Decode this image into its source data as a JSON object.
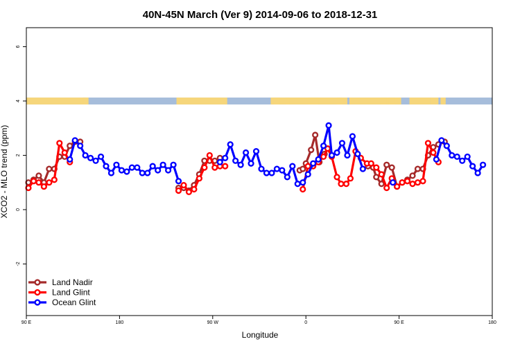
{
  "chart_data": {
    "type": "line",
    "title": "40N-45N March (Ver 9)   2014-09-06 to 2018-12-31",
    "xlabel": "Longitude",
    "ylabel": "XCO2 - MLO trend (ppm)",
    "xlim": [
      90,
      540
    ],
    "ylim": [
      -3.9,
      6.7
    ],
    "x_ticks": [
      {
        "value": 90,
        "label": "90 E"
      },
      {
        "value": 180,
        "label": "180"
      },
      {
        "value": 270,
        "label": "90 W"
      },
      {
        "value": 360,
        "label": "0"
      },
      {
        "value": 450,
        "label": "90 E"
      },
      {
        "value": 540,
        "label": "180"
      }
    ],
    "y_ticks": [
      {
        "value": -2,
        "label": "-2"
      },
      {
        "value": 0,
        "label": "0"
      },
      {
        "value": 2,
        "label": "2"
      },
      {
        "value": 4,
        "label": "4"
      },
      {
        "value": 6,
        "label": "6"
      }
    ],
    "legend_position": "bottom-left",
    "surface_strip": {
      "y_center": 4.0,
      "land_color": "#f6d67b",
      "ocean_color": "#a6bddb",
      "land_ranges": [
        [
          90,
          147
        ],
        [
          144,
          148
        ],
        [
          146,
          150
        ],
        [
          145,
          150
        ],
        [
          235,
          284
        ],
        [
          326,
          386
        ],
        [
          329,
          335
        ],
        [
          340,
          344
        ],
        [
          362,
          372
        ],
        [
          386,
          400
        ],
        [
          390,
          395
        ],
        [
          402,
          452
        ],
        [
          432,
          438
        ],
        [
          440,
          446
        ],
        [
          460,
          480
        ],
        [
          480,
          488
        ],
        [
          490,
          495
        ]
      ]
    },
    "series": [
      {
        "name": "Land Nadir",
        "color": "#a52a2a",
        "segments": [
          [
            [
              92,
              1.0
            ],
            [
              97,
              1.1
            ],
            [
              102,
              1.25
            ],
            [
              107,
              1.0
            ],
            [
              112,
              1.5
            ],
            [
              117,
              1.5
            ],
            [
              122,
              1.95
            ],
            [
              127,
              1.95
            ],
            [
              132,
              2.35
            ],
            [
              137,
              2.5
            ],
            [
              142,
              2.5
            ]
          ],
          [
            [
              237,
              0.8
            ],
            [
              242,
              0.8
            ],
            [
              247,
              0.7
            ],
            [
              252,
              0.9
            ],
            [
              257,
              1.3
            ],
            [
              262,
              1.8
            ],
            [
              267,
              1.8
            ],
            [
              272,
              1.8
            ],
            [
              277,
              1.9
            ]
          ],
          [
            [
              354,
              1.45
            ],
            [
              357,
              1.5
            ],
            [
              360,
              1.7
            ],
            [
              365,
              2.2
            ],
            [
              369,
              2.75
            ],
            [
              373,
              1.75
            ],
            [
              378,
              2.05
            ]
          ],
          [
            [
              420,
              1.6
            ],
            [
              425,
              1.55
            ],
            [
              428,
              1.2
            ],
            [
              433,
              0.95
            ],
            [
              438,
              1.65
            ],
            [
              443,
              1.55
            ],
            [
              448,
              0.85
            ],
            [
              453,
              1.0
            ],
            [
              458,
              1.1
            ],
            [
              463,
              1.25
            ],
            [
              468,
              1.5
            ],
            [
              473,
              1.5
            ],
            [
              478,
              2.0
            ],
            [
              483,
              2.3
            ],
            [
              488,
              2.4
            ],
            [
              494,
              2.5
            ]
          ]
        ]
      },
      {
        "name": "Land Glint",
        "color": "#ff0000",
        "segments": [
          [
            [
              92,
              0.8
            ],
            [
              97,
              1.05
            ],
            [
              102,
              1.0
            ],
            [
              107,
              0.85
            ],
            [
              112,
              1.0
            ],
            [
              117,
              1.1
            ],
            [
              122,
              2.45
            ],
            [
              127,
              2.1
            ],
            [
              132,
              1.75
            ]
          ],
          [
            [
              237,
              0.7
            ],
            [
              242,
              0.9
            ],
            [
              247,
              0.65
            ],
            [
              252,
              0.75
            ],
            [
              257,
              1.15
            ],
            [
              262,
              1.55
            ],
            [
              267,
              2.0
            ],
            [
              272,
              1.55
            ],
            [
              277,
              1.6
            ],
            [
              282,
              1.6
            ]
          ],
          [
            [
              357,
              0.75
            ],
            [
              362,
              1.6
            ],
            [
              367,
              1.6
            ],
            [
              372,
              1.75
            ],
            [
              377,
              1.95
            ],
            [
              381,
              2.25
            ],
            [
              385,
              1.95
            ],
            [
              390,
              1.2
            ],
            [
              394,
              0.95
            ],
            [
              399,
              0.95
            ],
            [
              403,
              1.15
            ],
            [
              408,
              2.15
            ],
            [
              413,
              1.9
            ],
            [
              419,
              1.7
            ],
            [
              423,
              1.7
            ],
            [
              428,
              1.55
            ],
            [
              433,
              1.3
            ],
            [
              438,
              0.8
            ],
            [
              443,
              1.15
            ],
            [
              448,
              0.85
            ],
            [
              453,
              1.0
            ],
            [
              458,
              1.05
            ],
            [
              463,
              0.95
            ],
            [
              468,
              1.0
            ],
            [
              473,
              1.05
            ],
            [
              478,
              2.45
            ],
            [
              483,
              2.1
            ],
            [
              488,
              1.75
            ]
          ]
        ]
      },
      {
        "name": "Ocean Glint",
        "color": "#0000ff",
        "segments": [
          [
            [
              132,
              1.85
            ],
            [
              137,
              2.55
            ],
            [
              142,
              2.35
            ],
            [
              147,
              2.0
            ],
            [
              152,
              1.9
            ],
            [
              157,
              1.8
            ],
            [
              162,
              1.95
            ],
            [
              167,
              1.6
            ],
            [
              172,
              1.35
            ],
            [
              177,
              1.65
            ],
            [
              182,
              1.45
            ],
            [
              187,
              1.4
            ],
            [
              192,
              1.55
            ],
            [
              197,
              1.55
            ],
            [
              202,
              1.35
            ],
            [
              207,
              1.35
            ],
            [
              212,
              1.6
            ],
            [
              217,
              1.45
            ],
            [
              222,
              1.65
            ],
            [
              227,
              1.45
            ],
            [
              232,
              1.65
            ],
            [
              237,
              1.05
            ]
          ],
          [
            [
              277,
              1.75
            ],
            [
              282,
              1.9
            ],
            [
              287,
              2.4
            ],
            [
              292,
              1.8
            ],
            [
              297,
              1.65
            ],
            [
              302,
              2.1
            ],
            [
              307,
              1.7
            ],
            [
              312,
              2.15
            ],
            [
              317,
              1.5
            ],
            [
              322,
              1.35
            ],
            [
              327,
              1.35
            ],
            [
              332,
              1.5
            ],
            [
              337,
              1.45
            ],
            [
              342,
              1.2
            ],
            [
              347,
              1.6
            ],
            [
              352,
              0.95
            ],
            [
              357,
              1.0
            ],
            [
              362,
              1.3
            ],
            [
              367,
              1.7
            ],
            [
              372,
              1.85
            ],
            [
              377,
              2.35
            ],
            [
              382,
              3.1
            ],
            [
              385,
              2.0
            ],
            [
              390,
              2.1
            ],
            [
              395,
              2.45
            ],
            [
              400,
              2.0
            ],
            [
              405,
              2.7
            ],
            [
              410,
              2.05
            ],
            [
              415,
              1.5
            ]
          ],
          [
            [
              444,
              1.0
            ]
          ],
          [
            [
              486,
              1.85
            ],
            [
              491,
              2.55
            ],
            [
              496,
              2.35
            ],
            [
              501,
              2.0
            ],
            [
              506,
              1.95
            ],
            [
              511,
              1.8
            ],
            [
              516,
              1.95
            ],
            [
              521,
              1.6
            ],
            [
              526,
              1.35
            ],
            [
              531,
              1.65
            ]
          ]
        ]
      }
    ]
  }
}
